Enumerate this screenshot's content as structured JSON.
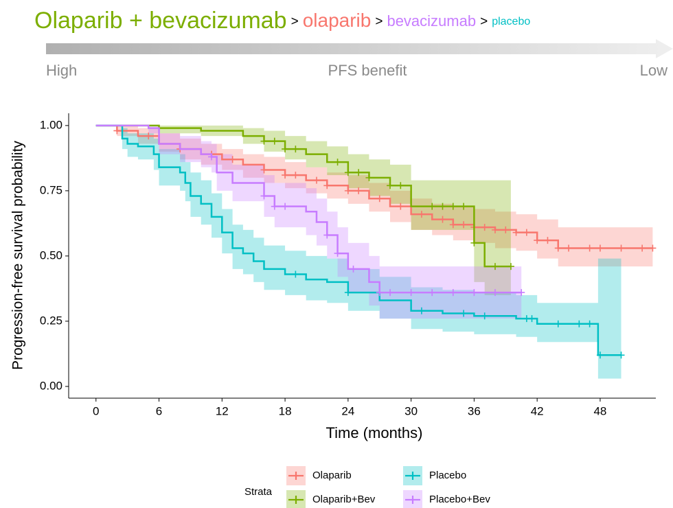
{
  "header": {
    "title": [
      {
        "text": "Olaparib + bevacizumab",
        "color": "#7CAE00"
      },
      {
        "text": ">",
        "color": "#000000"
      },
      {
        "text": "olaparib",
        "color": "#F8766D"
      },
      {
        "text": ">",
        "color": "#000000"
      },
      {
        "text": "bevacizumab",
        "color": "#C77CFF"
      },
      {
        "text": ">",
        "color": "#000000"
      },
      {
        "text": "placebo",
        "color": "#00BFC4"
      }
    ],
    "arrow_left": "High",
    "arrow_center": "PFS benefit",
    "arrow_right": "Low"
  },
  "chart_data": {
    "type": "km",
    "x_label": "Time (months)",
    "y_label": "Progression-free survival probability",
    "xlim": [
      -2.6,
      53.3
    ],
    "ylim": [
      -0.045,
      1.047
    ],
    "xticks": [
      0,
      6,
      12,
      18,
      24,
      30,
      36,
      42,
      48
    ],
    "yticks": [
      {
        "value": 0,
        "label": "0.00"
      },
      {
        "value": 0.25,
        "label": "0.25"
      },
      {
        "value": 0.5,
        "label": "0.50"
      },
      {
        "value": 0.75,
        "label": "0.75"
      },
      {
        "value": 1,
        "label": "1.00"
      }
    ],
    "legend_title": "Strata",
    "series": [
      {
        "name": "Olaparib",
        "color": "#F8766D",
        "x": [
          0,
          2,
          4,
          6,
          8,
          10,
          12,
          14,
          16,
          18,
          20,
          22,
          24,
          26,
          28,
          30,
          32,
          34,
          36,
          38,
          40,
          42,
          44,
          53
        ],
        "values": [
          1,
          0.98,
          0.96,
          0.93,
          0.91,
          0.89,
          0.87,
          0.85,
          0.83,
          0.81,
          0.79,
          0.77,
          0.75,
          0.72,
          0.69,
          0.66,
          0.64,
          0.62,
          0.61,
          0.6,
          0.59,
          0.56,
          0.53,
          0.53
        ],
        "lower": [
          1,
          0.96,
          0.93,
          0.9,
          0.87,
          0.85,
          0.83,
          0.8,
          0.78,
          0.76,
          0.74,
          0.72,
          0.7,
          0.67,
          0.63,
          0.6,
          0.58,
          0.56,
          0.55,
          0.53,
          0.52,
          0.49,
          0.46,
          0.46
        ],
        "upper": [
          1,
          1,
          0.99,
          0.97,
          0.95,
          0.93,
          0.91,
          0.89,
          0.88,
          0.86,
          0.84,
          0.82,
          0.81,
          0.78,
          0.75,
          0.72,
          0.7,
          0.69,
          0.68,
          0.67,
          0.66,
          0.64,
          0.61,
          0.61
        ],
        "censored": [
          2,
          5,
          8,
          11,
          13,
          16,
          18,
          19,
          21,
          22,
          24,
          25,
          27,
          29,
          31,
          33,
          34,
          35,
          36,
          37,
          38,
          39,
          40,
          41,
          42,
          43,
          44,
          45,
          47,
          48,
          50,
          52,
          53
        ]
      },
      {
        "name": "Olaparib+Bev",
        "color": "#7CAE00",
        "x": [
          0,
          4,
          6,
          10,
          14,
          16,
          18,
          20,
          22,
          24,
          26,
          28,
          30,
          36,
          37,
          39.5
        ],
        "values": [
          1,
          1,
          0.99,
          0.98,
          0.96,
          0.94,
          0.91,
          0.89,
          0.86,
          0.82,
          0.8,
          0.77,
          0.69,
          0.55,
          0.46,
          0.46
        ],
        "lower": [
          1,
          1,
          0.97,
          0.96,
          0.93,
          0.9,
          0.87,
          0.84,
          0.81,
          0.76,
          0.73,
          0.7,
          0.6,
          0.4,
          0.35,
          0.35
        ],
        "upper": [
          1,
          1,
          1,
          1,
          0.99,
          0.98,
          0.96,
          0.94,
          0.92,
          0.89,
          0.87,
          0.85,
          0.79,
          0.79,
          0.79,
          0.79
        ],
        "censored": [
          16,
          17,
          18,
          19,
          23,
          24,
          25,
          26,
          28,
          29,
          32,
          33,
          34,
          35,
          36,
          38,
          39.5
        ]
      },
      {
        "name": "Placebo",
        "color": "#00BFC4",
        "x": [
          0,
          2.5,
          3,
          4,
          5.5,
          6,
          8,
          8.5,
          9,
          10,
          11,
          12,
          13,
          14,
          15,
          16,
          18,
          20,
          22,
          24,
          27,
          30,
          33,
          36,
          40,
          42,
          47.8,
          50
        ],
        "values": [
          1,
          0.95,
          0.93,
          0.92,
          0.89,
          0.84,
          0.82,
          0.78,
          0.73,
          0.7,
          0.65,
          0.59,
          0.53,
          0.51,
          0.48,
          0.45,
          0.43,
          0.41,
          0.4,
          0.36,
          0.33,
          0.29,
          0.28,
          0.27,
          0.26,
          0.24,
          0.12,
          0.12
        ],
        "lower": [
          1,
          0.91,
          0.88,
          0.87,
          0.83,
          0.77,
          0.75,
          0.71,
          0.65,
          0.62,
          0.57,
          0.51,
          0.45,
          0.43,
          0.4,
          0.37,
          0.35,
          0.33,
          0.32,
          0.29,
          0.26,
          0.22,
          0.21,
          0.2,
          0.19,
          0.17,
          0.03,
          0.03
        ],
        "upper": [
          1,
          0.99,
          0.97,
          0.97,
          0.95,
          0.91,
          0.89,
          0.86,
          0.82,
          0.79,
          0.74,
          0.68,
          0.62,
          0.6,
          0.57,
          0.54,
          0.52,
          0.5,
          0.49,
          0.45,
          0.42,
          0.38,
          0.37,
          0.36,
          0.35,
          0.32,
          0.49,
          0.49
        ],
        "censored": [
          19,
          24,
          31,
          35,
          37,
          41,
          41.5,
          44,
          46,
          47,
          48,
          50
        ]
      },
      {
        "name": "Placebo+Bev",
        "color": "#C77CFF",
        "x": [
          0,
          5,
          6,
          8,
          10,
          11,
          11.5,
          13,
          16,
          17,
          20,
          21,
          22,
          23,
          24,
          26,
          27,
          40.5
        ],
        "values": [
          1,
          0.99,
          0.93,
          0.91,
          0.89,
          0.88,
          0.82,
          0.78,
          0.73,
          0.69,
          0.67,
          0.63,
          0.58,
          0.51,
          0.45,
          0.4,
          0.36,
          0.36
        ],
        "lower": [
          1,
          0.97,
          0.89,
          0.86,
          0.84,
          0.82,
          0.75,
          0.71,
          0.65,
          0.61,
          0.58,
          0.54,
          0.49,
          0.42,
          0.36,
          0.31,
          0.26,
          0.26
        ],
        "upper": [
          1,
          1,
          0.97,
          0.96,
          0.94,
          0.93,
          0.89,
          0.85,
          0.81,
          0.78,
          0.76,
          0.72,
          0.67,
          0.61,
          0.55,
          0.5,
          0.46,
          0.46
        ],
        "censored": [
          11,
          16,
          17,
          18,
          22,
          23,
          24.5,
          27,
          28,
          30,
          32,
          34,
          36,
          38,
          40.5
        ]
      }
    ]
  }
}
